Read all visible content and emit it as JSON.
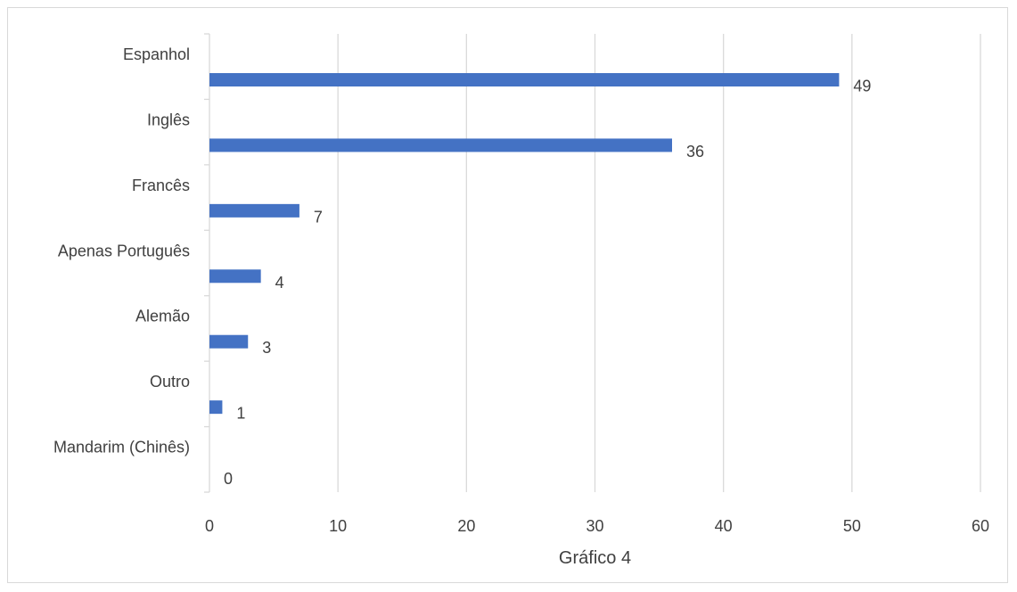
{
  "chart_data": {
    "type": "bar",
    "orientation": "horizontal",
    "categories": [
      "Espanhol",
      "Inglês",
      "Francês",
      "Apenas Português",
      "Alemão",
      "Outro",
      "Mandarim (Chinês)"
    ],
    "values": [
      49,
      36,
      7,
      4,
      3,
      1,
      0
    ],
    "title": "",
    "xlabel": "Gráfico 4",
    "ylabel": "",
    "xlim": [
      0,
      60
    ],
    "xticks": [
      0,
      10,
      20,
      30,
      40,
      50,
      60
    ],
    "grid": true,
    "data_labels": true,
    "legend": "none",
    "colors": {
      "bar": "#4472C4",
      "grid": "#d9d9d9",
      "text": "#404040"
    }
  }
}
